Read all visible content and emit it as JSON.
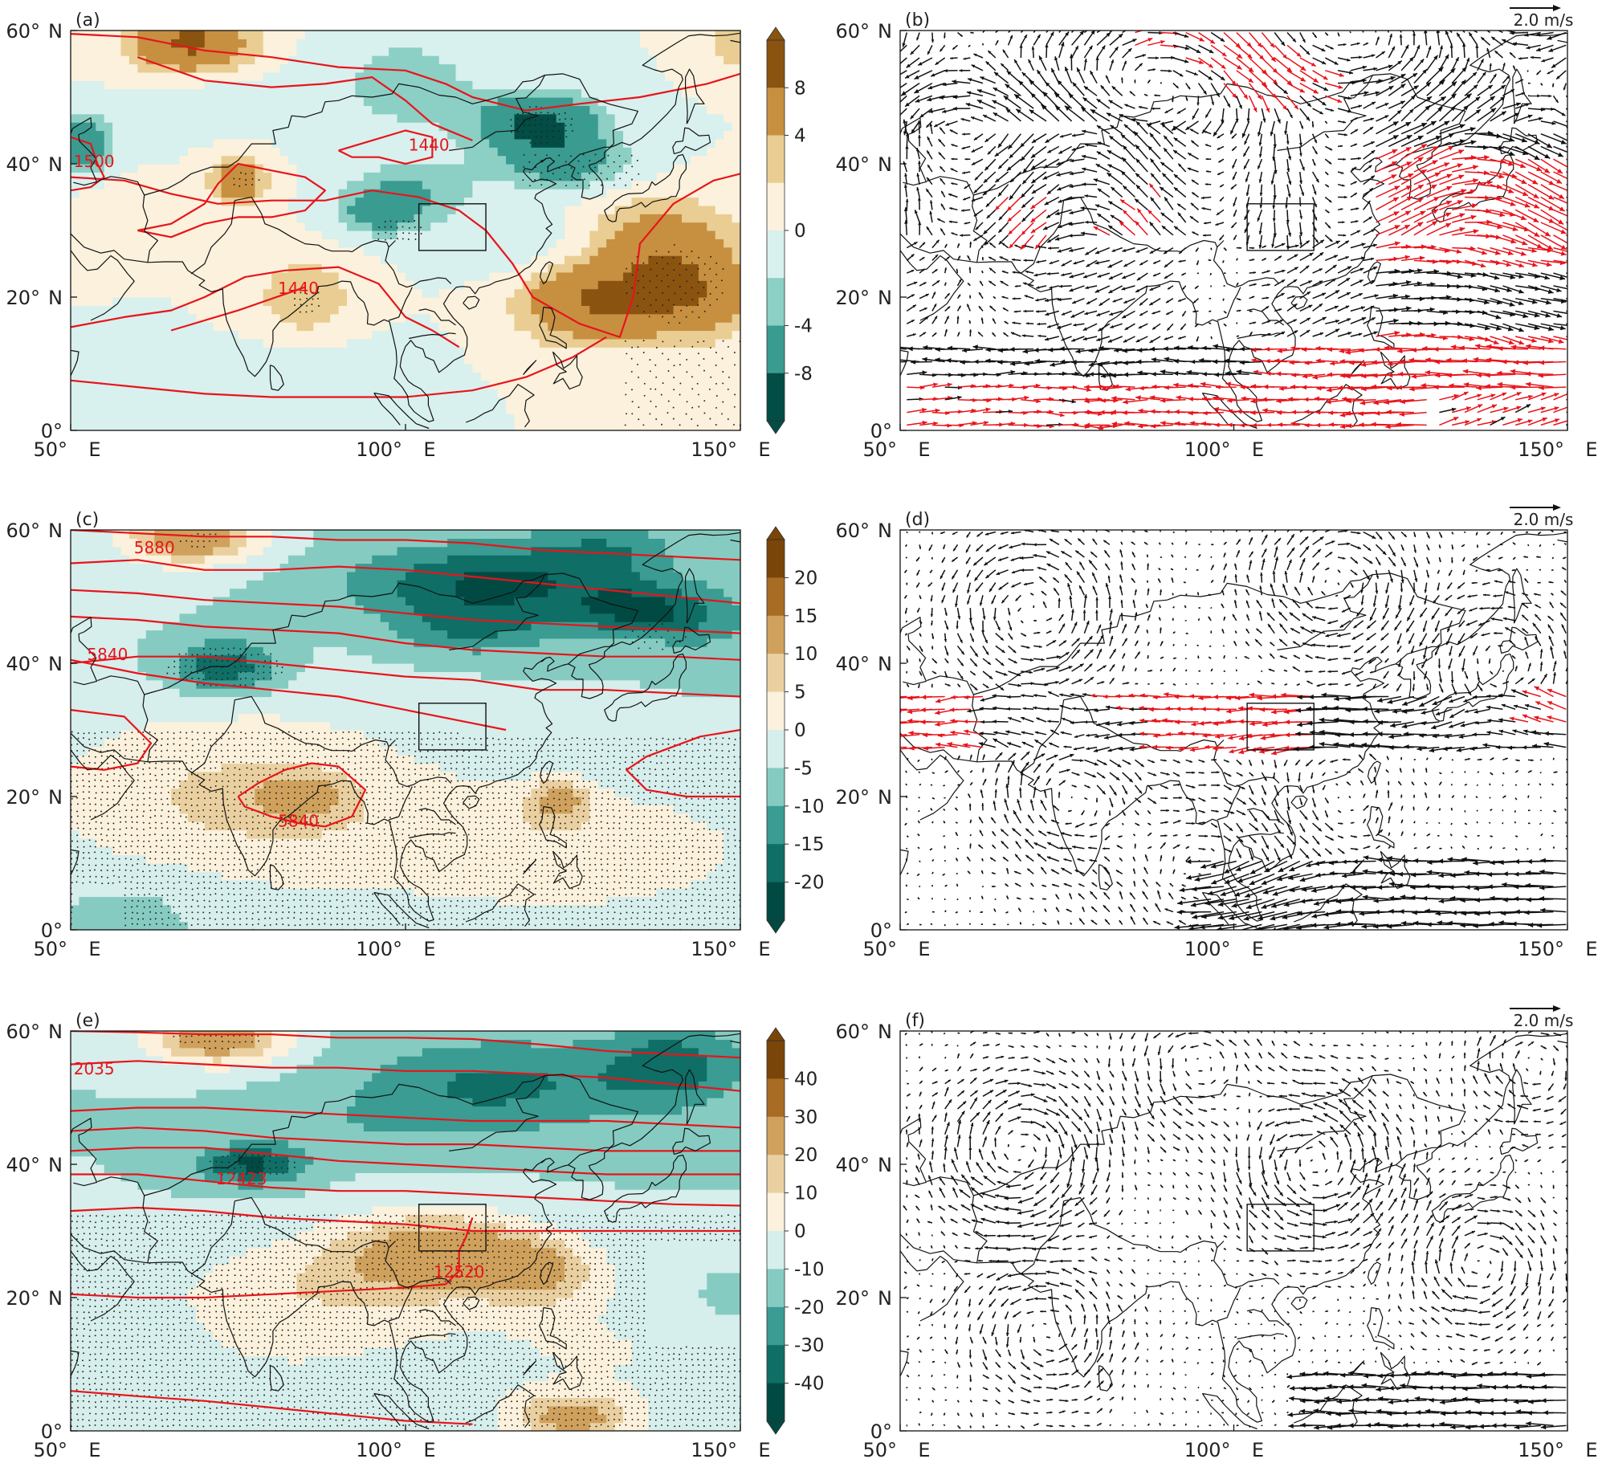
{
  "figure": {
    "colors": {
      "contour_line": "#e8141b",
      "vector_significant": "#e8141b",
      "vector_normal": "#111111",
      "land_outline": "#111111",
      "palette_brown_teal": [
        "#013f3a",
        "#2a8f84",
        "#7dc5b8",
        "#d2ecea",
        "#fbf1dc",
        "#e6c88a",
        "#c48c3e",
        "#8a5410"
      ]
    },
    "icon_names": [
      "colorbar-extend-arrow-top",
      "colorbar-extend-arrow-bottom",
      "reference-arrow"
    ]
  },
  "chart_data": [
    {
      "type": "heatmap",
      "panel_label": "(a)",
      "x_ticks": [
        "50° E",
        "100° E",
        "150° E"
      ],
      "y_ticks": [
        "0°",
        "20° N",
        "40° N",
        "60° N"
      ],
      "xlim_deg": [
        50,
        150
      ],
      "ylim_deg": [
        0,
        60
      ],
      "colorbar_ticks": [
        "8",
        "4",
        "0",
        "-4",
        "-8"
      ],
      "colorbar_levels": 8,
      "colorbar_extend": "both",
      "contour_labels": [
        "1500",
        "1440",
        "1440"
      ],
      "stippling": true,
      "box_region": {
        "lon": [
          102,
          112
        ],
        "lat": [
          27,
          34
        ]
      }
    },
    {
      "type": "vector",
      "panel_label": "(b)",
      "x_ticks": [
        "50° E",
        "100° E",
        "150° E"
      ],
      "y_ticks": [
        "0°",
        "20° N",
        "40° N",
        "60° N"
      ],
      "xlim_deg": [
        50,
        150
      ],
      "ylim_deg": [
        0,
        60
      ],
      "reference_vector": "2.0 m/s",
      "box_region": {
        "lon": [
          102,
          112
        ],
        "lat": [
          27,
          34
        ]
      }
    },
    {
      "type": "heatmap",
      "panel_label": "(c)",
      "x_ticks": [
        "50° E",
        "100° E",
        "150° E"
      ],
      "y_ticks": [
        "0°",
        "20° N",
        "40° N",
        "60° N"
      ],
      "xlim_deg": [
        50,
        150
      ],
      "ylim_deg": [
        0,
        60
      ],
      "colorbar_ticks": [
        "20",
        "15",
        "10",
        "5",
        "0",
        "-5",
        "-10",
        "-15",
        "-20"
      ],
      "colorbar_levels": 10,
      "colorbar_extend": "both",
      "contour_labels": [
        "5880",
        "5840",
        "5840"
      ],
      "stippling": true,
      "box_region": {
        "lon": [
          102,
          112
        ],
        "lat": [
          27,
          34
        ]
      }
    },
    {
      "type": "vector",
      "panel_label": "(d)",
      "x_ticks": [
        "50° E",
        "100° E",
        "150° E"
      ],
      "y_ticks": [
        "0°",
        "20° N",
        "40° N",
        "60° N"
      ],
      "xlim_deg": [
        50,
        150
      ],
      "ylim_deg": [
        0,
        60
      ],
      "reference_vector": "2.0 m/s",
      "box_region": {
        "lon": [
          102,
          112
        ],
        "lat": [
          27,
          34
        ]
      }
    },
    {
      "type": "heatmap",
      "panel_label": "(e)",
      "x_ticks": [
        "50° E",
        "100° E",
        "150° E"
      ],
      "y_ticks": [
        "0°",
        "20° N",
        "40° N",
        "60° N"
      ],
      "xlim_deg": [
        50,
        150
      ],
      "ylim_deg": [
        0,
        60
      ],
      "colorbar_ticks": [
        "40",
        "30",
        "20",
        "10",
        "0",
        "-10",
        "-20",
        "-30",
        "-40"
      ],
      "colorbar_levels": 10,
      "colorbar_extend": "both",
      "contour_labels": [
        "2035",
        "12423",
        "12520"
      ],
      "stippling": true,
      "box_region": {
        "lon": [
          102,
          112
        ],
        "lat": [
          27,
          34
        ]
      }
    },
    {
      "type": "vector",
      "panel_label": "(f)",
      "x_ticks": [
        "50° E",
        "100° E",
        "150° E"
      ],
      "y_ticks": [
        "0°",
        "20° N",
        "40° N",
        "60° N"
      ],
      "xlim_deg": [
        50,
        150
      ],
      "ylim_deg": [
        0,
        60
      ],
      "reference_vector": "2.0 m/s",
      "box_region": {
        "lon": [
          102,
          112
        ],
        "lat": [
          27,
          34
        ]
      }
    }
  ]
}
